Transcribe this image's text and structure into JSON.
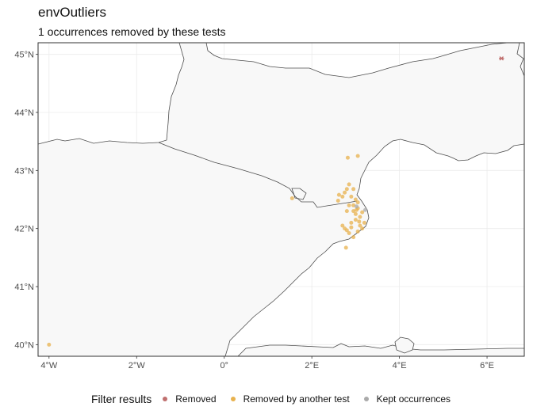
{
  "title": "envOutliers",
  "subtitle": "1 occurrences removed by these tests",
  "legend": {
    "title": "Filter results",
    "items": [
      {
        "label": "Removed",
        "color": "#c0706f"
      },
      {
        "label": "Removed by another test",
        "color": "#e8b24e"
      },
      {
        "label": "Kept occurrences",
        "color": "#aaaaaa"
      }
    ]
  },
  "chart_data": {
    "type": "scatter",
    "x_ticks": [
      {
        "value": -4,
        "label": "4°W"
      },
      {
        "value": -2,
        "label": "2°W"
      },
      {
        "value": 0,
        "label": "0°"
      },
      {
        "value": 2,
        "label": "2°E"
      },
      {
        "value": 4,
        "label": "4°E"
      },
      {
        "value": 6,
        "label": "6°E"
      }
    ],
    "y_ticks": [
      {
        "value": 40,
        "label": "40°N"
      },
      {
        "value": 41,
        "label": "41°N"
      },
      {
        "value": 42,
        "label": "42°N"
      },
      {
        "value": 43,
        "label": "43°N"
      },
      {
        "value": 44,
        "label": "44°N"
      },
      {
        "value": 45,
        "label": "45°N"
      }
    ],
    "xlim": [
      -4.25,
      6.85
    ],
    "ylim": [
      39.8,
      45.2
    ],
    "grid": true,
    "colors": {
      "removed": "#c0706f",
      "another": "#e8b24e",
      "kept": "#aaaaaa"
    },
    "series": [
      {
        "name": "Removed",
        "marker": "asterisk",
        "points": [
          [
            6.33,
            44.93
          ]
        ]
      },
      {
        "name": "Removed by another test",
        "marker": "circle",
        "points": [
          [
            -4.0,
            40.0
          ],
          [
            1.55,
            42.52
          ],
          [
            2.6,
            42.48
          ],
          [
            2.7,
            42.55
          ],
          [
            2.75,
            42.62
          ],
          [
            2.8,
            42.68
          ],
          [
            2.95,
            42.68
          ],
          [
            2.85,
            42.76
          ],
          [
            2.82,
            43.22
          ],
          [
            3.05,
            43.25
          ],
          [
            2.9,
            42.55
          ],
          [
            3.0,
            42.5
          ],
          [
            2.95,
            42.4
          ],
          [
            3.05,
            42.35
          ],
          [
            2.85,
            42.4
          ],
          [
            2.8,
            42.3
          ],
          [
            3.1,
            42.2
          ],
          [
            3.0,
            42.25
          ],
          [
            2.95,
            42.3
          ],
          [
            3.02,
            42.32
          ],
          [
            2.9,
            42.1
          ],
          [
            3.08,
            42.12
          ],
          [
            3.15,
            42.28
          ],
          [
            2.75,
            42.0
          ],
          [
            2.8,
            41.97
          ],
          [
            2.85,
            41.92
          ],
          [
            2.9,
            42.02
          ],
          [
            3.1,
            42.05
          ],
          [
            3.2,
            42.1
          ],
          [
            3.05,
            41.95
          ],
          [
            3.15,
            42.0
          ],
          [
            2.78,
            41.67
          ],
          [
            2.95,
            41.85
          ],
          [
            2.7,
            42.05
          ],
          [
            3.0,
            42.15
          ],
          [
            3.05,
            42.45
          ],
          [
            2.62,
            42.58
          ]
        ]
      },
      {
        "name": "Kept occurrences",
        "marker": "circle",
        "points": [
          [
            3.22,
            42.32
          ],
          [
            3.02,
            42.38
          ]
        ]
      }
    ]
  }
}
